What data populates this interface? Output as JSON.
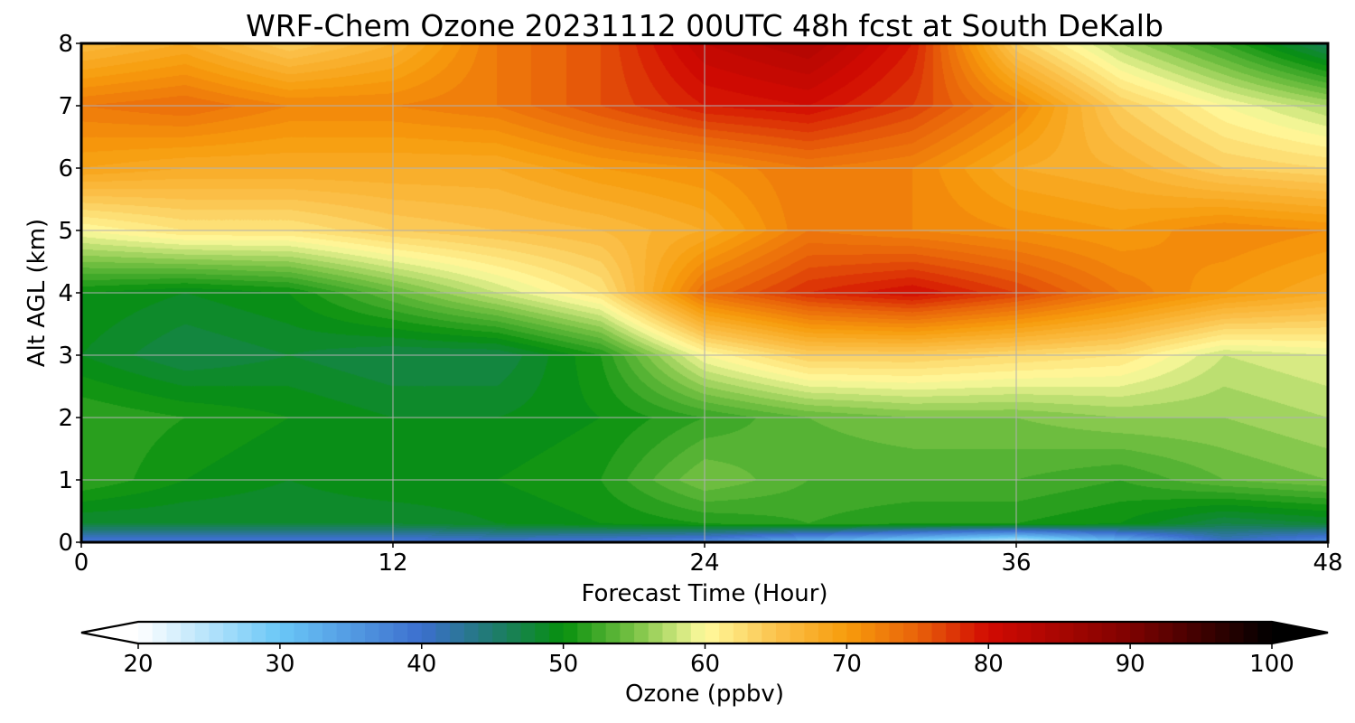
{
  "chart_data": {
    "type": "heatmap",
    "title": "WRF-Chem Ozone  20231112 00UTC 48h fcst at South DeKalb",
    "xlabel": "Forecast Time (Hour)",
    "ylabel": "Alt AGL (km)",
    "xlim": [
      0,
      48
    ],
    "ylim": [
      0,
      8
    ],
    "x_ticks": [
      0,
      12,
      24,
      36,
      48
    ],
    "y_ticks": [
      0,
      1,
      2,
      3,
      4,
      5,
      6,
      7,
      8
    ],
    "grid": true,
    "z_units": "ppbv",
    "x": [
      0,
      4,
      8,
      12,
      16,
      20,
      24,
      28,
      32,
      36,
      40,
      44,
      48
    ],
    "y": [
      0,
      0.3,
      1,
      2,
      3,
      4,
      5,
      6,
      7,
      8
    ],
    "z": [
      [
        38,
        38,
        38,
        38,
        39,
        38,
        36,
        31,
        27,
        22,
        30,
        40,
        36
      ],
      [
        48,
        48,
        48,
        48,
        49,
        50,
        51,
        52,
        51,
        51,
        50,
        47,
        48
      ],
      [
        52,
        50,
        49,
        50,
        50,
        51,
        55,
        53,
        53,
        53,
        52,
        54,
        55
      ],
      [
        52,
        51,
        50,
        49,
        49,
        50,
        52,
        54,
        55,
        55,
        56,
        56,
        57
      ],
      [
        49,
        47,
        48,
        47,
        47,
        51,
        60,
        64,
        64,
        63,
        62,
        58,
        59
      ],
      [
        50,
        49,
        50,
        54,
        58,
        62,
        74,
        78,
        80,
        77,
        73,
        70,
        68
      ],
      [
        60,
        62,
        62,
        64,
        65,
        66,
        68,
        73,
        72,
        71,
        70,
        72,
        71
      ],
      [
        69,
        68,
        68,
        68,
        68,
        70,
        71,
        73,
        72,
        68,
        67,
        64,
        63
      ],
      [
        73,
        74,
        72,
        72,
        73,
        76,
        79,
        80,
        77,
        72,
        64,
        60,
        57
      ],
      [
        66,
        68,
        64,
        67,
        73,
        76,
        82,
        84,
        79,
        64,
        57,
        52,
        46
      ]
    ],
    "colorbar": {
      "label": "Ozone  (ppbv)",
      "min": 20,
      "max": 100,
      "ticks": [
        20,
        30,
        40,
        50,
        60,
        70,
        80,
        90,
        100
      ],
      "extend": "both",
      "color_stops": [
        {
          "v": 20,
          "c": "#ffffff"
        },
        {
          "v": 30,
          "c": "#6ac7f7"
        },
        {
          "v": 40,
          "c": "#3c6fce"
        },
        {
          "v": 45,
          "c": "#1f7b70"
        },
        {
          "v": 50,
          "c": "#07900d"
        },
        {
          "v": 55,
          "c": "#78c244"
        },
        {
          "v": 60,
          "c": "#fffb9e"
        },
        {
          "v": 65,
          "c": "#fbc24c"
        },
        {
          "v": 70,
          "c": "#f79c0c"
        },
        {
          "v": 75,
          "c": "#e8620a"
        },
        {
          "v": 80,
          "c": "#d20a02"
        },
        {
          "v": 90,
          "c": "#7e0201"
        },
        {
          "v": 100,
          "c": "#000000"
        }
      ]
    }
  }
}
